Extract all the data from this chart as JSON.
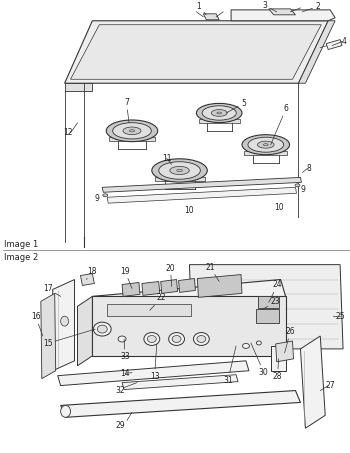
{
  "image1_label": "Image 1",
  "image2_label": "Image 2",
  "lc": "#333333",
  "tc": "#222222",
  "fc_light": "#f2f2f2",
  "fc_mid": "#e0e0e0",
  "fc_dark": "#c8c8c8",
  "fc_white": "#ffffff",
  "divider_color": "#888888",
  "fig_width": 3.5,
  "fig_height": 4.53,
  "dpi": 100,
  "fs": 5.5
}
